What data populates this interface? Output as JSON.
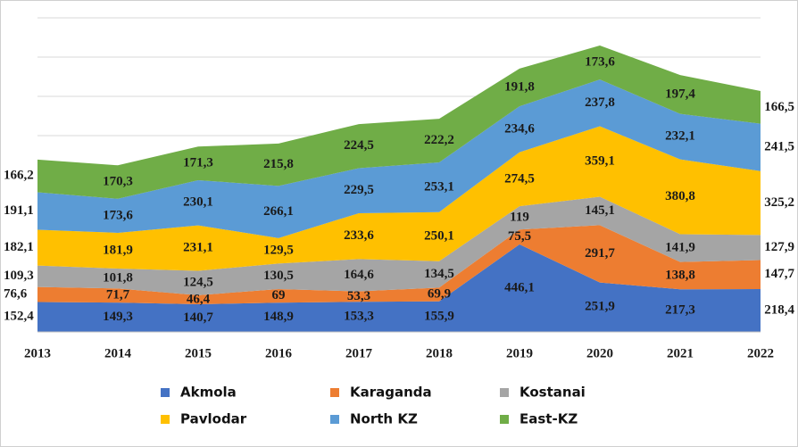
{
  "chart_data": {
    "type": "stacked_area",
    "categories": [
      "2013",
      "2014",
      "2015",
      "2016",
      "2017",
      "2018",
      "2019",
      "2020",
      "2021",
      "2022"
    ],
    "ylim": [
      0,
      1600
    ],
    "yticks": [
      0,
      200,
      400,
      600,
      800,
      1000,
      1200,
      1400,
      1600
    ],
    "grid": true,
    "series": [
      {
        "name": "Akmola",
        "color": "#4472c4",
        "values": [
          152.4,
          149.3,
          140.7,
          148.9,
          153.3,
          155.9,
          446.1,
          251.9,
          217.3,
          218.4
        ],
        "value_labels": [
          "152,4",
          "149,3",
          "140,7",
          "148,9",
          "153,3",
          "155,9",
          "446,1",
          "251,9",
          "217,3",
          "218,4"
        ]
      },
      {
        "name": "Karaganda",
        "color": "#ed7d31",
        "values": [
          76.6,
          71.7,
          46.4,
          69,
          53.3,
          69.9,
          75.5,
          291.7,
          138.8,
          147.7
        ],
        "value_labels": [
          "76,6",
          "71,7",
          "46,4",
          "69",
          "53,3",
          "69,9",
          "75,5",
          "291,7",
          "138,8",
          "147,7"
        ]
      },
      {
        "name": "Kostanai",
        "color": "#a5a5a5",
        "values": [
          109.3,
          101.8,
          124.5,
          130.5,
          164.6,
          134.5,
          119,
          145.1,
          141.9,
          127.9
        ],
        "value_labels": [
          "109,3",
          "101,8",
          "124,5",
          "130,5",
          "164,6",
          "134,5",
          "119",
          "145,1",
          "141,9",
          "127,9"
        ]
      },
      {
        "name": "Pavlodar",
        "color": "#ffc000",
        "values": [
          182.1,
          181.9,
          231.1,
          129.5,
          233.6,
          250.1,
          274.5,
          359.1,
          380.8,
          325.2
        ],
        "value_labels": [
          "182,1",
          "181,9",
          "231,1",
          "129,5",
          "233,6",
          "250,1",
          "274,5",
          "359,1",
          "380,8",
          "325,2"
        ]
      },
      {
        "name": "North KZ",
        "color": "#5b9bd5",
        "values": [
          191.1,
          173.6,
          230.1,
          266.1,
          229.5,
          253.1,
          234.6,
          237.8,
          232.1,
          241.5
        ],
        "value_labels": [
          "191,1",
          "173,6",
          "230,1",
          "266,1",
          "229,5",
          "253,1",
          "234,6",
          "237,8",
          "232,1",
          "241,5"
        ]
      },
      {
        "name": "East-KZ",
        "color": "#70ad47",
        "values": [
          166.2,
          170.3,
          171.3,
          215.8,
          224.5,
          222.2,
          191.8,
          173.6,
          197.4,
          166.5
        ],
        "value_labels": [
          "166,2",
          "170,3",
          "171,3",
          "215,8",
          "224,5",
          "222,2",
          "191,8",
          "173,6",
          "197,4",
          "166,5"
        ]
      }
    ]
  }
}
